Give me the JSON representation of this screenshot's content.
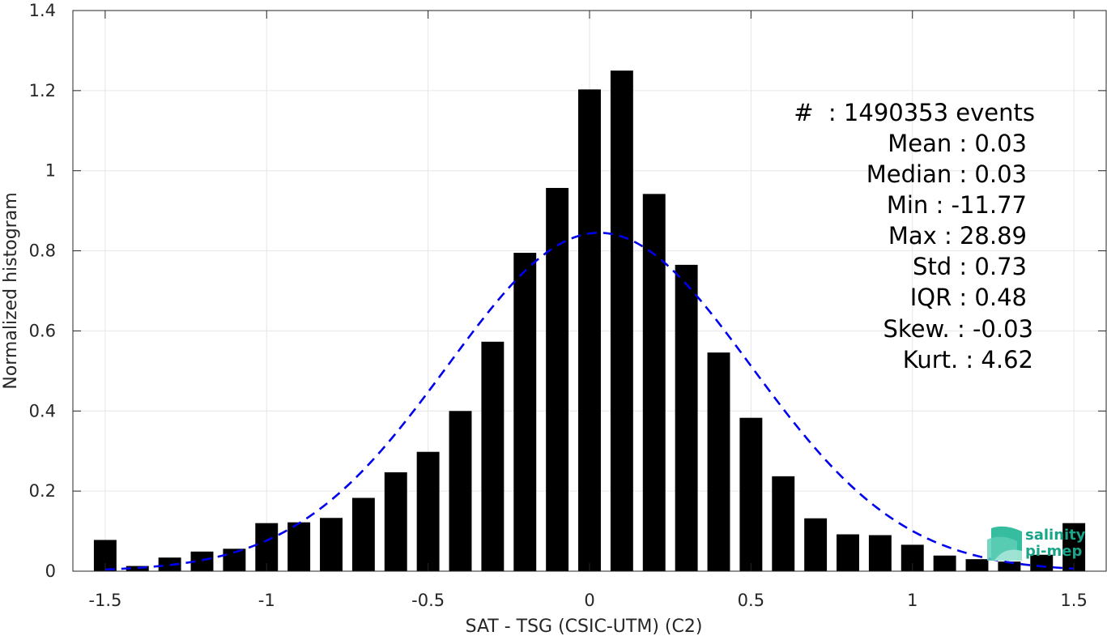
{
  "chart_data": {
    "type": "bar",
    "title": "",
    "xlabel": "SAT - TSG (CSIC-UTM) (C2)",
    "ylabel": "Normalized histogram",
    "xlim": [
      -1.6,
      1.6
    ],
    "ylim": [
      0,
      1.4
    ],
    "grid": true,
    "x_ticks": [
      -1.5,
      -1,
      -0.5,
      0,
      0.5,
      1,
      1.5
    ],
    "x_tick_labels": [
      "-1.5",
      "-1",
      "-0.5",
      "0",
      "0.5",
      "1",
      "1.5"
    ],
    "y_ticks": [
      0,
      0.2,
      0.4,
      0.6,
      0.8,
      1,
      1.2,
      1.4
    ],
    "y_tick_labels": [
      "0",
      "0.2",
      "0.4",
      "0.6",
      "0.8",
      "1",
      "1.2",
      "1.4"
    ],
    "bin_width": 0.1,
    "bar_fill_fraction": 0.7,
    "bar_color": "#000000",
    "bin_centers": [
      -1.5,
      -1.4,
      -1.3,
      -1.2,
      -1.1,
      -1.0,
      -0.9,
      -0.8,
      -0.7,
      -0.6,
      -0.5,
      -0.4,
      -0.3,
      -0.2,
      -0.1,
      0.0,
      0.1,
      0.2,
      0.3,
      0.4,
      0.5,
      0.6,
      0.7,
      0.8,
      0.9,
      1.0,
      1.1,
      1.2,
      1.3,
      1.4,
      1.5
    ],
    "values": [
      0.078,
      0.013,
      0.034,
      0.049,
      0.056,
      0.12,
      0.122,
      0.133,
      0.183,
      0.247,
      0.298,
      0.4,
      0.573,
      0.795,
      0.957,
      1.203,
      1.25,
      0.942,
      0.765,
      0.546,
      0.383,
      0.237,
      0.132,
      0.092,
      0.09,
      0.066,
      0.039,
      0.03,
      0.024,
      0.041,
      0.12
    ],
    "fit_curve": {
      "type": "gaussian",
      "mean": 0.03,
      "std": 0.47,
      "amplitude": 0.845,
      "color": "#0000ee",
      "style": "dashed"
    },
    "annotations": [
      "#  : 1490353 events",
      "Mean : 0.03",
      "Median : 0.03",
      "Min : -11.77",
      "Max : 28.89",
      "Std : 0.73",
      "IQR : 0.48",
      "Skew. : -0.03",
      "Kurt. : 4.62"
    ]
  },
  "logo": {
    "line1": "salinity",
    "line2": "pi-mep",
    "color": "#1aa58a"
  }
}
